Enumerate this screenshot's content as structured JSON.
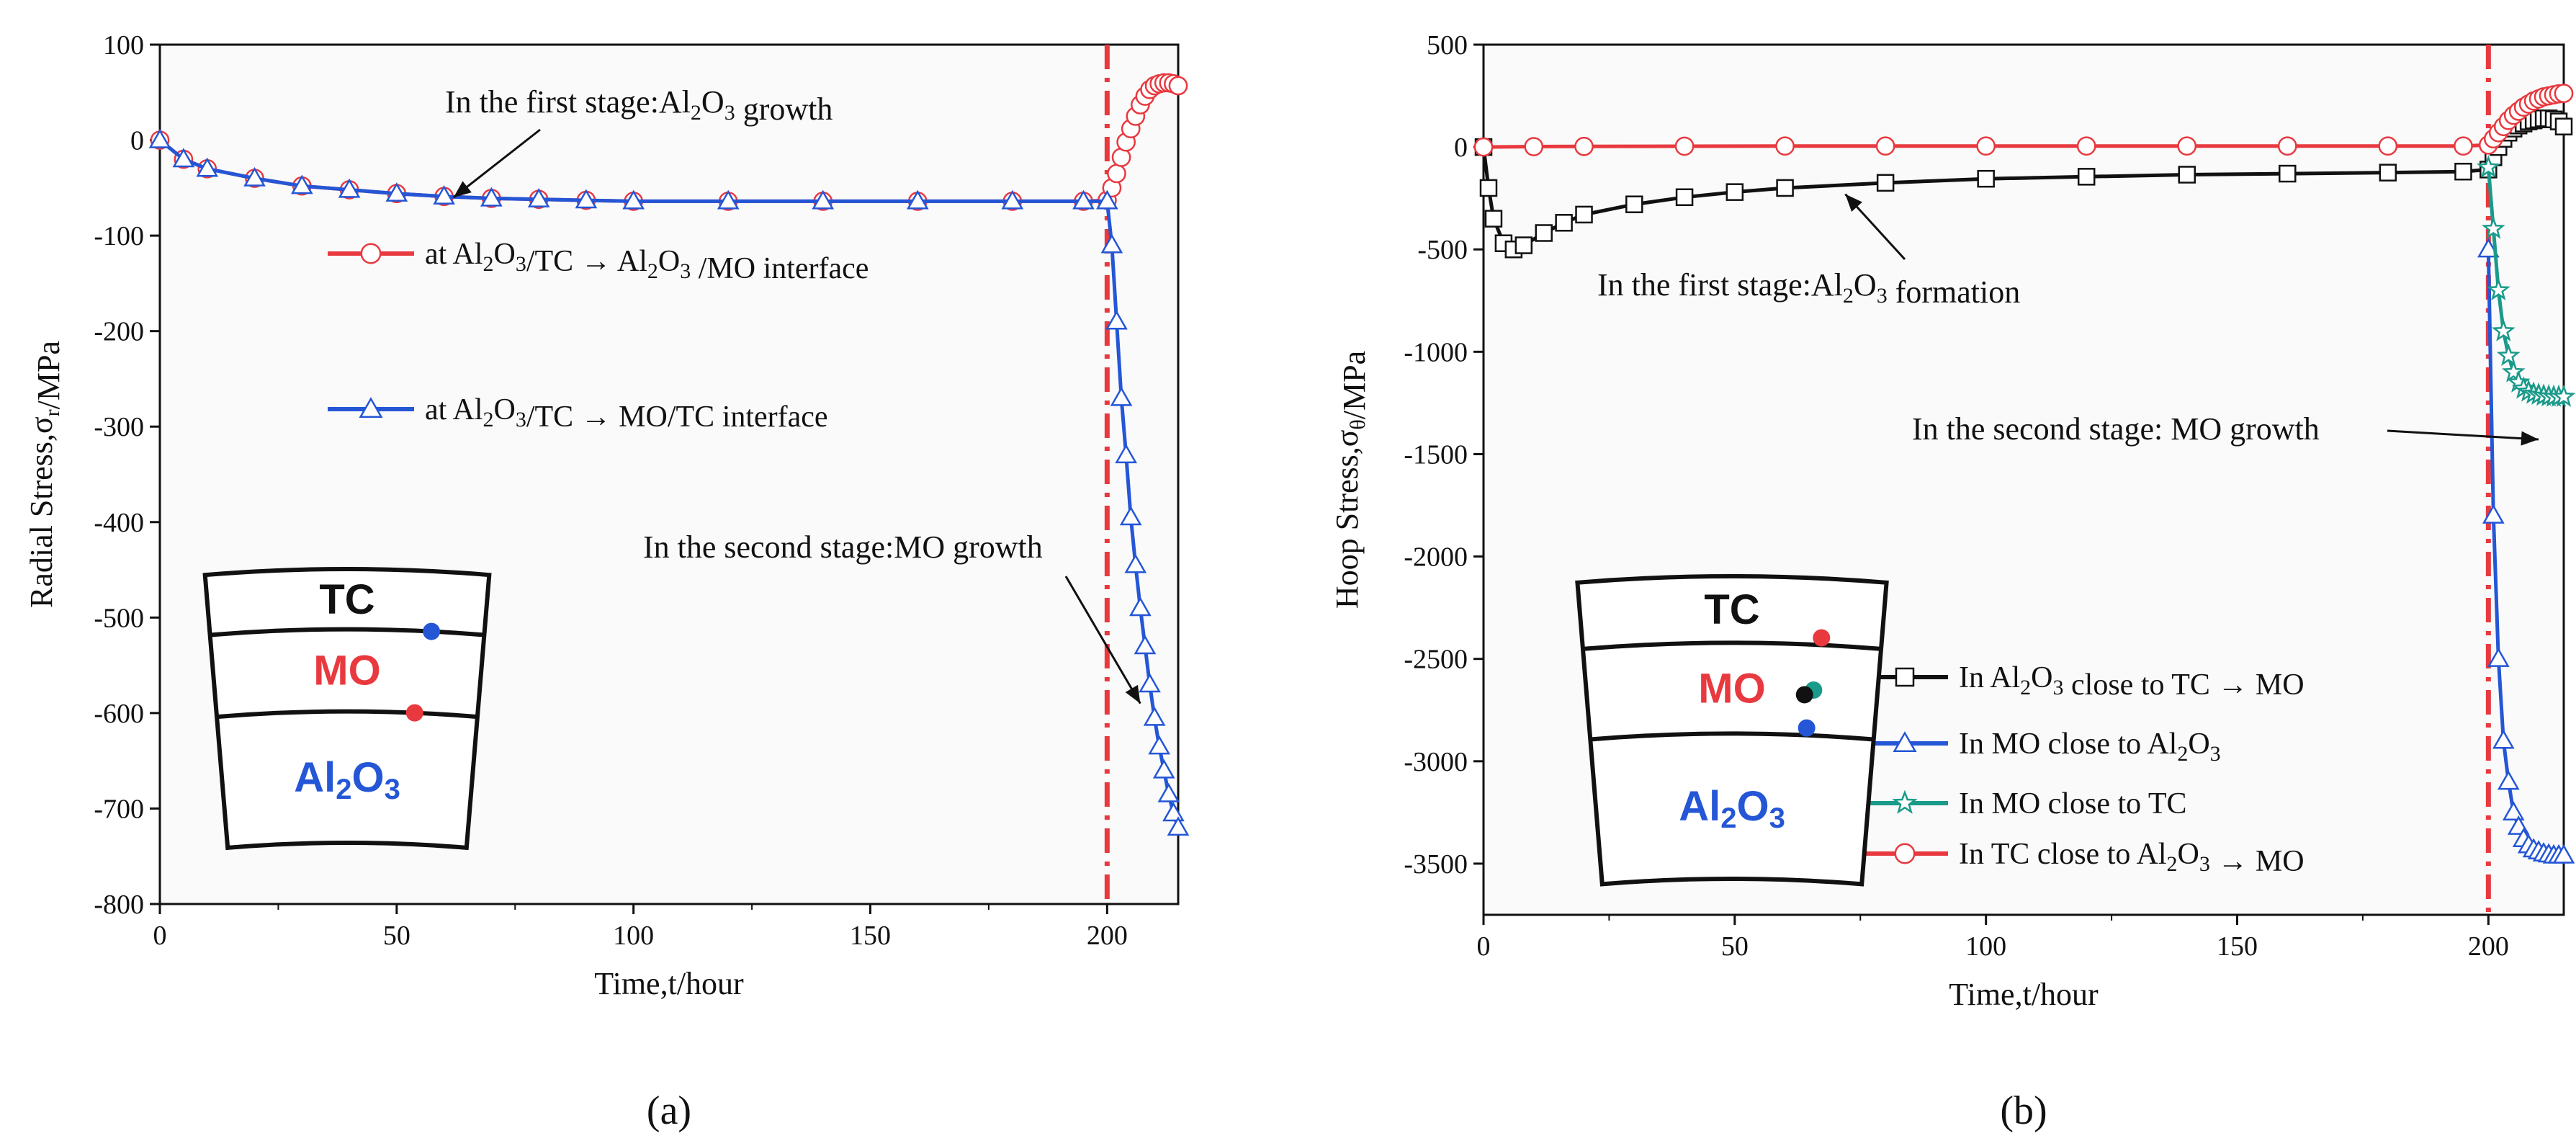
{
  "chart_data": [
    {
      "panel": "(a)",
      "type": "line",
      "xlabel": "Time,t/hour",
      "ylabel": "Radial Stress,σr/MPa",
      "xlim": [
        0,
        215
      ],
      "ylim": [
        -800,
        100
      ],
      "xticks": [
        0,
        50,
        100,
        150,
        200
      ],
      "yticks": [
        100,
        0,
        -100,
        -200,
        -300,
        -400,
        -500,
        -600,
        -700,
        -800
      ],
      "vline_x": 200,
      "series": [
        {
          "name": "at Al2O3/TC → Al2O3 /MO interface",
          "legend": "at Al2O3/TC → Al2O3 /MO interface",
          "color": "#e8393f",
          "marker": "circle",
          "x": [
            0,
            5,
            10,
            20,
            30,
            40,
            50,
            60,
            70,
            80,
            90,
            100,
            120,
            140,
            160,
            180,
            195,
            200,
            201,
            202,
            203,
            204,
            205,
            206,
            207,
            208,
            209,
            210,
            211,
            212,
            213,
            214,
            215
          ],
          "y": [
            0,
            -20,
            -30,
            -40,
            -48,
            -52,
            -56,
            -59,
            -61,
            -62,
            -63,
            -64,
            -64,
            -64,
            -64,
            -64,
            -64,
            -63,
            -50,
            -35,
            -18,
            -2,
            12,
            25,
            37,
            46,
            53,
            57,
            59,
            60,
            60,
            59,
            57
          ]
        },
        {
          "name": "at Al2O3/TC → MO/TC interface",
          "legend": "at Al2O3/TC → MO/TC interface",
          "color": "#2456d6",
          "marker": "triangle",
          "x": [
            0,
            5,
            10,
            20,
            30,
            40,
            50,
            60,
            70,
            80,
            90,
            100,
            120,
            140,
            160,
            180,
            195,
            200,
            201,
            202,
            203,
            204,
            205,
            206,
            207,
            208,
            209,
            210,
            211,
            212,
            213,
            214,
            215
          ],
          "y": [
            0,
            -20,
            -30,
            -40,
            -48,
            -52,
            -56,
            -59,
            -61,
            -62,
            -63,
            -64,
            -64,
            -64,
            -64,
            -64,
            -64,
            -64,
            -110,
            -190,
            -270,
            -330,
            -395,
            -445,
            -490,
            -530,
            -570,
            -605,
            -635,
            -660,
            -685,
            -705,
            -720
          ]
        }
      ],
      "annotations": [
        {
          "label": "In the first stage:Al2O3 growth",
          "x": 62,
          "y": -60
        },
        {
          "label": "In the second stage:MO growth",
          "x": 207,
          "y": -590
        }
      ],
      "inset": {
        "layers": [
          "TC",
          "MO",
          "Al2O3"
        ],
        "markers": [
          {
            "name": "blue",
            "color": "#2456d6"
          },
          {
            "name": "red",
            "color": "#e8393f"
          }
        ]
      }
    },
    {
      "panel": "(b)",
      "type": "line",
      "xlabel": "Time,t/hour",
      "ylabel": "Hoop Stress,σθ/MPa",
      "xlim": [
        0,
        215
      ],
      "ylim": [
        -3750,
        500
      ],
      "xticks": [
        0,
        50,
        100,
        150,
        200
      ],
      "yticks": [
        500,
        0,
        -500,
        -1000,
        -1500,
        -2000,
        -2500,
        -3000,
        -3500
      ],
      "vline_x": 200,
      "series": [
        {
          "name": "In Al2O3 close to TC → MO",
          "legend": "In Al2O3 close to TC → MO",
          "color": "#111111",
          "marker": "square",
          "x": [
            0,
            1,
            2,
            4,
            6,
            8,
            12,
            16,
            20,
            30,
            40,
            50,
            60,
            80,
            100,
            120,
            140,
            160,
            180,
            195,
            200,
            201,
            202,
            203,
            204,
            205,
            206,
            207,
            208,
            209,
            210,
            211,
            212,
            213,
            214,
            215
          ],
          "y": [
            0,
            -200,
            -350,
            -470,
            -500,
            -480,
            -420,
            -370,
            -330,
            -280,
            -245,
            -220,
            -200,
            -175,
            -155,
            -145,
            -135,
            -130,
            -125,
            -120,
            -110,
            -50,
            0,
            40,
            70,
            90,
            105,
            115,
            125,
            130,
            135,
            140,
            140,
            135,
            125,
            100
          ]
        },
        {
          "name": "In MO close to Al2O3",
          "legend": "In MO close to Al2O3",
          "color": "#2456d6",
          "marker": "triangle",
          "x": [
            200,
            201,
            202,
            203,
            204,
            205,
            206,
            207,
            208,
            209,
            210,
            211,
            212,
            213,
            214,
            215
          ],
          "y": [
            -500,
            -1800,
            -2500,
            -2900,
            -3100,
            -3250,
            -3320,
            -3380,
            -3410,
            -3430,
            -3440,
            -3450,
            -3455,
            -3460,
            -3460,
            -3460
          ]
        },
        {
          "name": "In MO close to TC",
          "legend": "In MO close to TC",
          "color": "#1a9a8a",
          "marker": "star",
          "x": [
            200,
            201,
            202,
            203,
            204,
            205,
            206,
            207,
            208,
            209,
            210,
            211,
            212,
            213,
            214,
            215
          ],
          "y": [
            -100,
            -400,
            -700,
            -900,
            -1020,
            -1100,
            -1150,
            -1180,
            -1195,
            -1205,
            -1210,
            -1215,
            -1218,
            -1220,
            -1220,
            -1220
          ]
        },
        {
          "name": "In TC close to Al2O3 → MO",
          "legend": "In TC close to Al2O3 → MO",
          "color": "#e8393f",
          "marker": "circle",
          "x": [
            0,
            10,
            20,
            40,
            60,
            80,
            100,
            120,
            140,
            160,
            180,
            195,
            200,
            201,
            202,
            203,
            204,
            205,
            206,
            207,
            208,
            209,
            210,
            211,
            212,
            213,
            214,
            215
          ],
          "y": [
            0,
            2,
            3,
            4,
            5,
            5,
            5,
            5,
            5,
            5,
            5,
            5,
            10,
            40,
            70,
            100,
            130,
            155,
            175,
            195,
            210,
            225,
            235,
            245,
            250,
            255,
            260,
            262
          ]
        }
      ],
      "annotations": [
        {
          "label": "In the first stage:Al2O3 formation",
          "x": 72,
          "y": -230
        },
        {
          "label": "In the second stage: MO growth",
          "x": 212,
          "y": -1500
        }
      ],
      "inset": {
        "layers": [
          "TC",
          "MO",
          "Al2O3"
        ],
        "markers": [
          {
            "name": "red",
            "color": "#e8393f"
          },
          {
            "name": "teal",
            "color": "#1a9a8a"
          },
          {
            "name": "blue",
            "color": "#2456d6"
          },
          {
            "name": "black",
            "color": "#111111"
          }
        ]
      }
    }
  ]
}
